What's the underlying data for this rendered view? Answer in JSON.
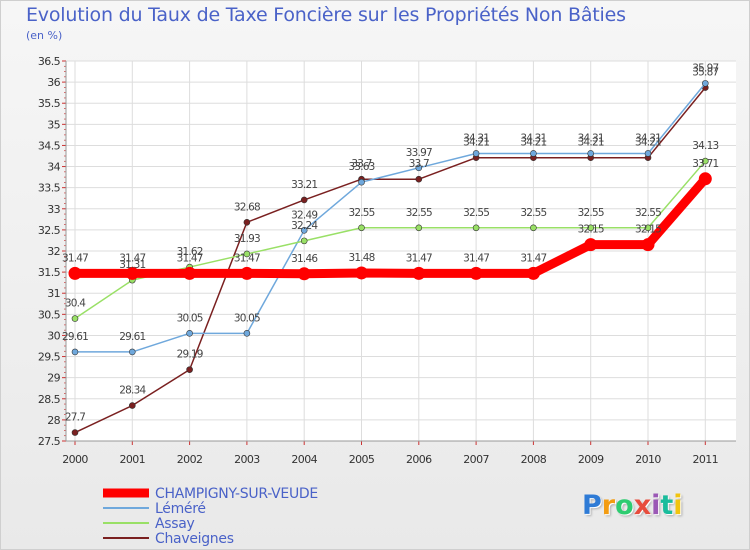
{
  "chart_data": {
    "type": "line",
    "title": "Evolution du Taux de Taxe Foncière sur les Propriétés Non Bâties",
    "ylabel": "(en %)",
    "xlabel": "",
    "ylim": [
      27.5,
      36.5
    ],
    "yticks": [
      27.5,
      28,
      28.5,
      29,
      29.5,
      30,
      30.5,
      31,
      31.5,
      32,
      32.5,
      33,
      33.5,
      34,
      34.5,
      35,
      35.5,
      36,
      36.5
    ],
    "x": [
      "2000",
      "2001",
      "2002",
      "2003",
      "2004",
      "2005",
      "2006",
      "2007",
      "2008",
      "2009",
      "2010",
      "2011"
    ],
    "grid": true,
    "series": [
      {
        "name": "CHAMPIGNY-SUR-VEUDE",
        "color": "#ff0000",
        "values": [
          31.47,
          31.47,
          31.47,
          31.47,
          31.46,
          31.48,
          31.47,
          31.47,
          31.47,
          32.15,
          32.15,
          33.71
        ],
        "labels": [
          "31.47",
          "31.47",
          "31.47",
          "31.47",
          "31.46",
          "31.48",
          "31.47",
          "31.47",
          "31.47",
          "32.15",
          "32.15",
          "33.71"
        ]
      },
      {
        "name": "Léméré",
        "color": "#6fa8dc",
        "values": [
          29.61,
          29.61,
          30.05,
          30.05,
          32.49,
          33.63,
          33.97,
          34.31,
          34.31,
          34.31,
          34.31,
          35.97
        ],
        "labels": [
          "29.61",
          "29.61",
          "30.05",
          "30.05",
          "32.49",
          "33.63",
          "33.97",
          "34.31",
          "34.31",
          "34.31",
          "34.31",
          "35.97"
        ]
      },
      {
        "name": "Assay",
        "color": "#99e066",
        "values": [
          30.4,
          31.31,
          31.62,
          31.93,
          32.24,
          32.55,
          32.55,
          32.55,
          32.55,
          32.55,
          32.55,
          34.13
        ],
        "labels": [
          "30.4",
          "31.31",
          "31.62",
          "31.93",
          "32.24",
          "32.55",
          "32.55",
          "32.55",
          "32.55",
          "32.55",
          "32.55",
          "34.13"
        ]
      },
      {
        "name": "Chaveignes",
        "color": "#7a2020",
        "values": [
          27.7,
          28.34,
          29.19,
          32.68,
          33.21,
          33.7,
          33.7,
          34.21,
          34.21,
          34.21,
          34.21,
          35.87
        ],
        "labels": [
          "27.7",
          "28.34",
          "29.19",
          "32.68",
          "33.21",
          "33.7",
          "33.7",
          "34.21",
          "34.21",
          "34.21",
          "34.21",
          "35.87"
        ]
      }
    ]
  },
  "logo": {
    "text": "Proxiti",
    "colors": [
      "#2e7bd6",
      "#f39c12",
      "#2ecc71",
      "#e74c3c",
      "#9b59b6",
      "#1abc9c",
      "#f1c40f"
    ]
  }
}
